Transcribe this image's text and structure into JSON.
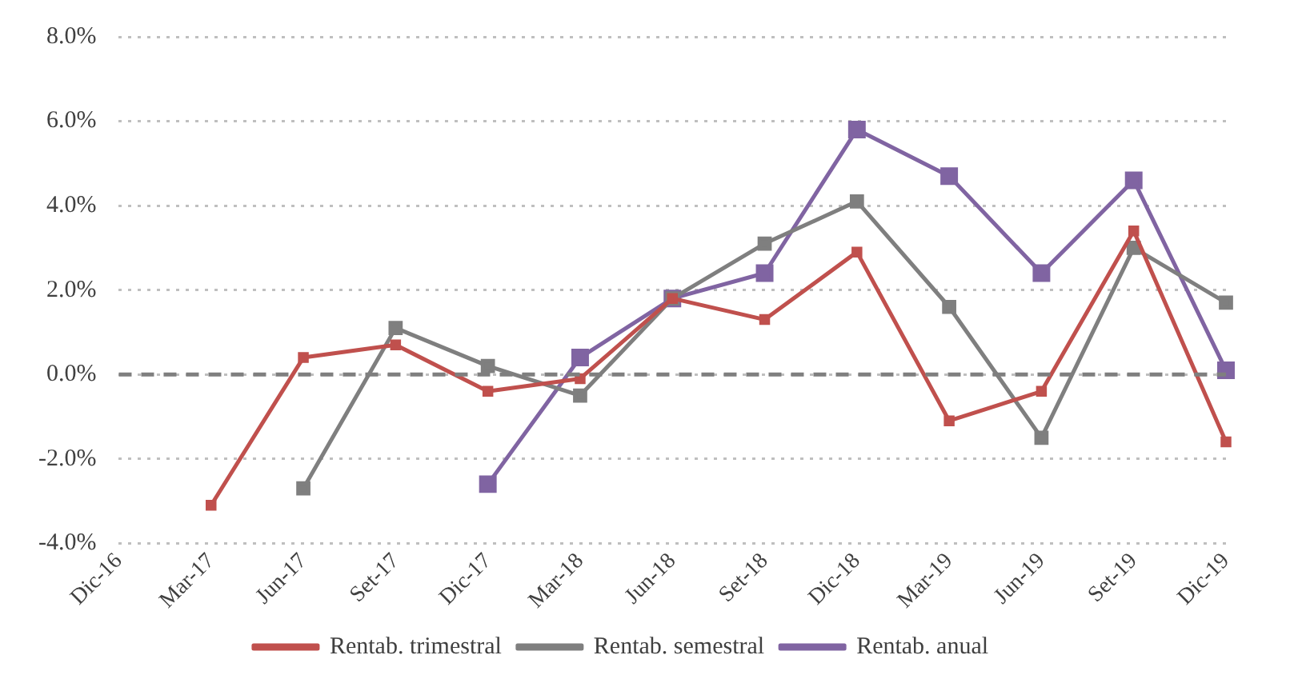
{
  "chart_data": {
    "type": "line",
    "categories": [
      "Dic-16",
      "Mar-17",
      "Jun-17",
      "Set-17",
      "Dic-17",
      "Mar-18",
      "Jun-18",
      "Set-18",
      "Dic-18",
      "Mar-19",
      "Jun-19",
      "Set-19",
      "Dic-19"
    ],
    "series": [
      {
        "name": "Rentab. trimestral",
        "color": "#c0504d",
        "values": [
          null,
          -3.1,
          0.4,
          0.7,
          -0.4,
          -0.1,
          1.8,
          1.3,
          2.9,
          -1.1,
          -0.4,
          3.4,
          -1.6
        ]
      },
      {
        "name": "Rentab. semestral",
        "color": "#7f7f7f",
        "values": [
          null,
          null,
          -2.7,
          1.1,
          0.2,
          -0.5,
          1.8,
          3.1,
          4.1,
          1.6,
          -1.5,
          3.0,
          1.7
        ]
      },
      {
        "name": "Rentab. anual",
        "color": "#8064a2",
        "values": [
          null,
          null,
          null,
          null,
          -2.6,
          0.4,
          1.8,
          2.4,
          5.8,
          4.7,
          2.4,
          4.6,
          0.1
        ]
      }
    ],
    "ylim": [
      -4,
      8
    ],
    "yticks": [
      {
        "value": -4,
        "label": "-4.0%"
      },
      {
        "value": -2,
        "label": "-2.0%"
      },
      {
        "value": 0,
        "label": "0.0%"
      },
      {
        "value": 2,
        "label": "2.0%"
      },
      {
        "value": 4,
        "label": "4.0%"
      },
      {
        "value": 6,
        "label": "6.0%"
      },
      {
        "value": 8,
        "label": "8.0%"
      }
    ],
    "ref_lines": [
      {
        "axis": "y",
        "value": 0,
        "color": "#7f7f7f",
        "line_style": "dashed"
      }
    ],
    "grid": "y",
    "legend": "bottom",
    "marker": "square",
    "line_style": "solid"
  }
}
